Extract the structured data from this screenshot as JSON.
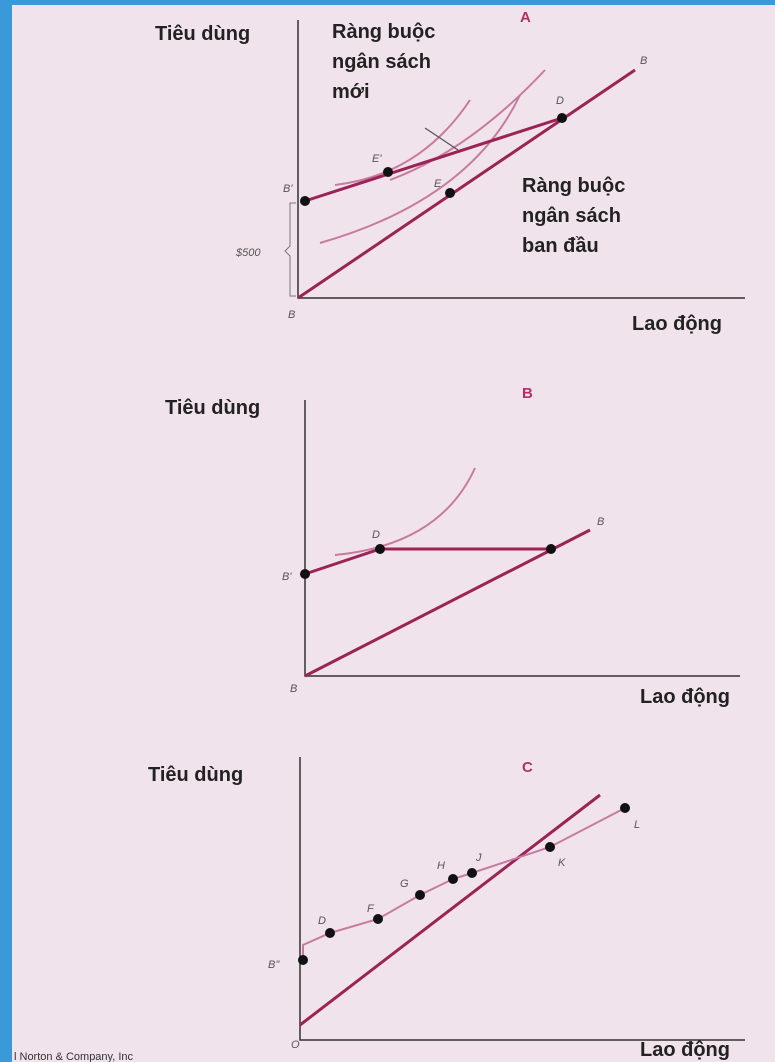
{
  "panels": [
    {
      "letter": "A",
      "y_label": "Tiêu dùng",
      "x_label": "Lao động",
      "new_budget_label": [
        "Ràng buộc",
        "ngân sách",
        "mới"
      ],
      "original_budget_label": [
        "Ràng buộc",
        "ngân sách",
        "ban đầu"
      ],
      "amount": "$500",
      "point_labels": [
        "B",
        "B",
        "B'",
        "D",
        "E'",
        "E"
      ]
    },
    {
      "letter": "B",
      "y_label": "Tiêu dùng",
      "x_label": "Lao động",
      "point_labels": [
        "B",
        "B",
        "B'",
        "D"
      ]
    },
    {
      "letter": "C",
      "y_label": "Tiêu dùng",
      "x_label": "Lao động",
      "point_labels": [
        "O",
        "B\"",
        "D",
        "F",
        "G",
        "H",
        "J",
        "K",
        "L"
      ]
    }
  ],
  "footer": "l Norton & Company, Inc"
}
